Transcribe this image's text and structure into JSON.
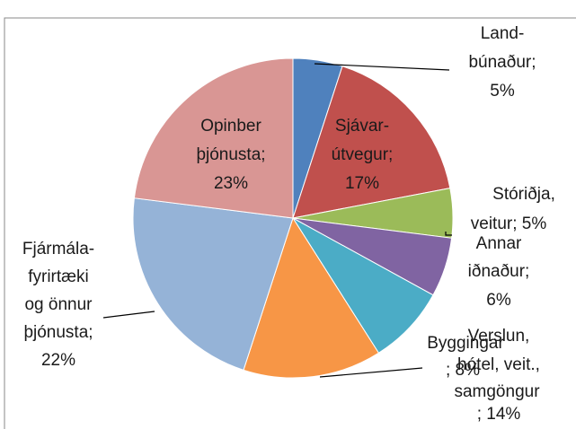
{
  "chart_data": {
    "type": "pie",
    "categories": [
      "Land-búnaður",
      "Sjávar-útvegur",
      "Stóriðja, veitur",
      "Annar iðnaður",
      "Byggingar",
      "Verslun, hótel, veit., samgöngur",
      "Fjármála-fyrirtæki og önnur þjónusta",
      "Opinber þjónusta"
    ],
    "values": [
      5,
      17,
      5,
      6,
      8,
      14,
      22,
      23
    ],
    "colors": [
      "#4f81bd",
      "#c0504d",
      "#9bbb59",
      "#8064a2",
      "#4bacc6",
      "#f79646",
      "#95b3d7",
      "#d99694"
    ],
    "data_labels": [
      [
        "Land-",
        "búnaður;",
        "5%"
      ],
      [
        "Sjávar-",
        "útvegur;",
        "17%"
      ],
      [
        "Stóriðja,",
        "veitur; 5%"
      ],
      [
        "Annar",
        "iðnaður;",
        "6%"
      ],
      [
        "Byggingar",
        "; 8%"
      ],
      [
        "Verslun,",
        "hótel, veit.,",
        "samgöngur",
        "; 14%"
      ],
      [
        "Fjármála-",
        "fyrirtæki",
        "og önnur",
        "þjónusta;",
        "22%"
      ],
      [
        "Opinber",
        "þjónusta;",
        "23%"
      ]
    ]
  }
}
